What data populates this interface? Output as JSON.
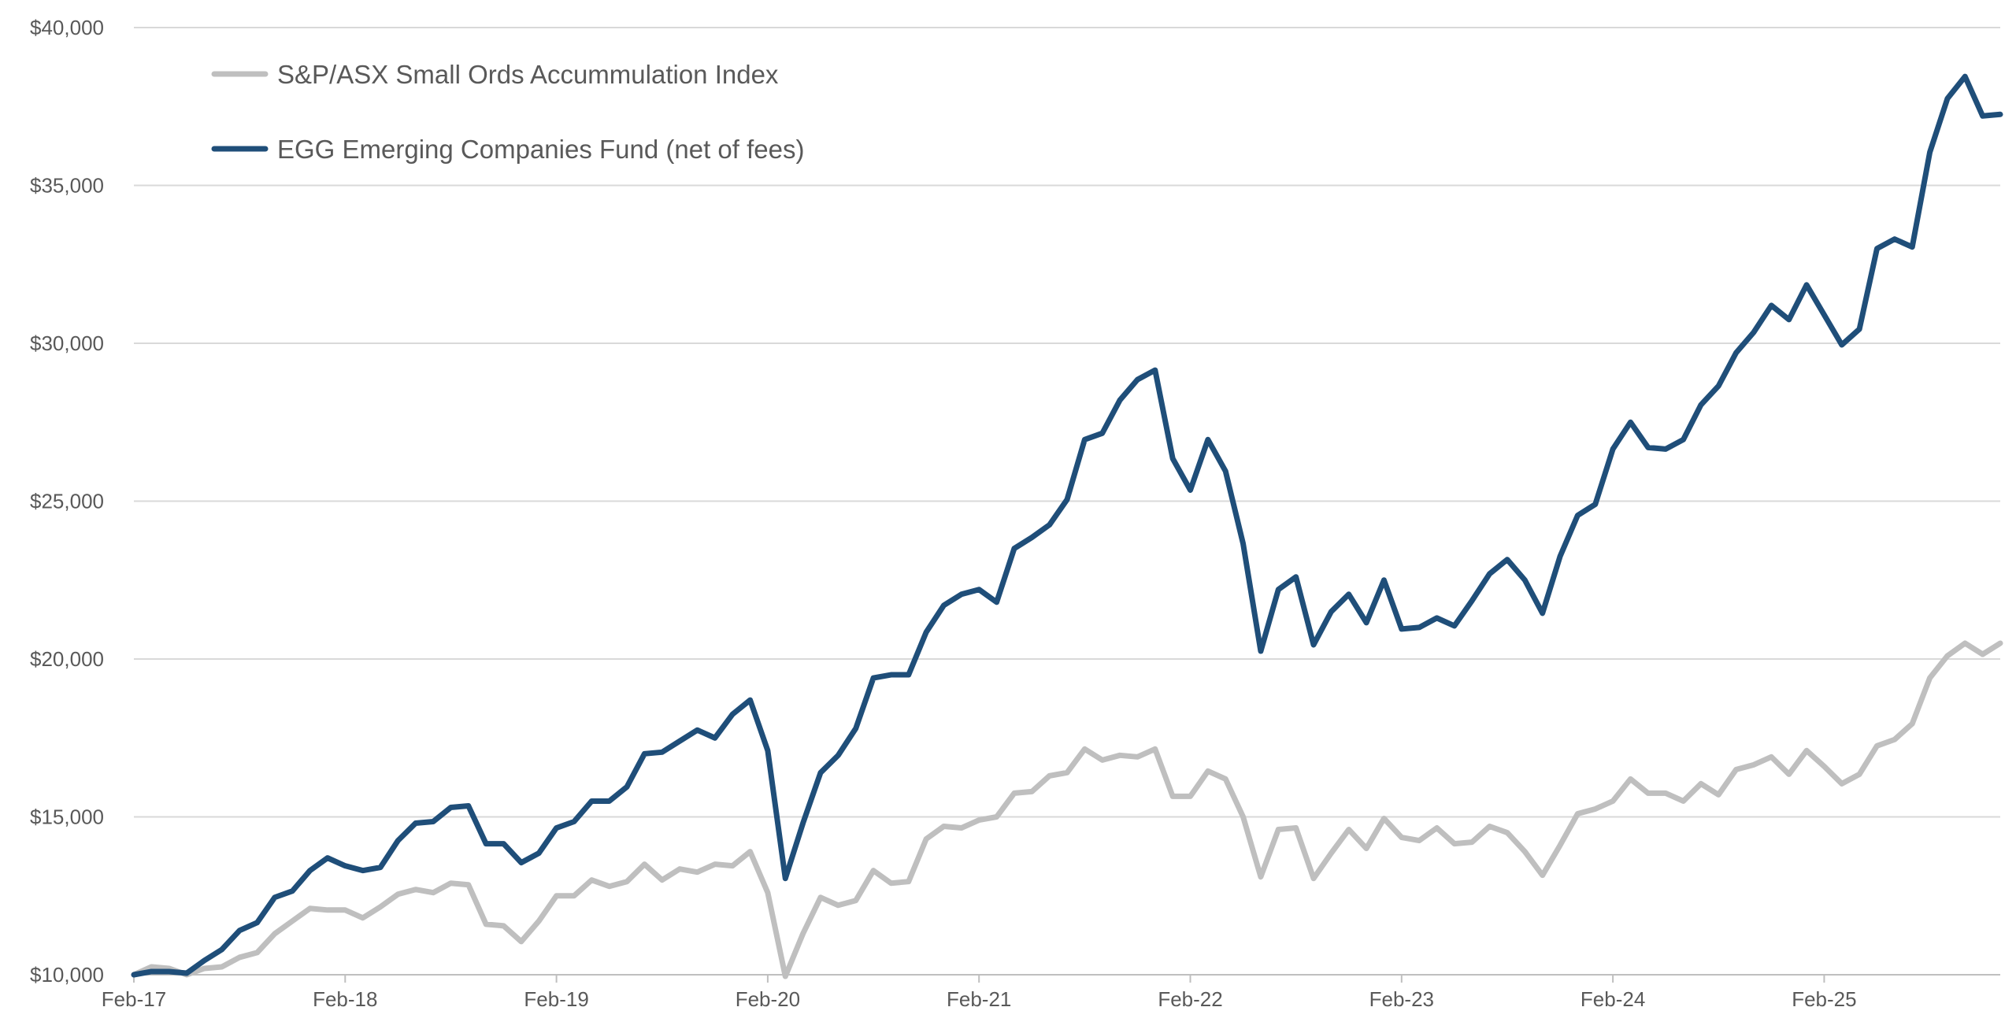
{
  "chart_data": {
    "type": "line",
    "title": "",
    "xlabel": "",
    "ylabel": "",
    "ylim": [
      10000,
      40000
    ],
    "y_ticks": [
      10000,
      15000,
      20000,
      25000,
      30000,
      35000,
      40000
    ],
    "y_tick_labels": [
      "$10,000",
      "$15,000",
      "$20,000",
      "$25,000",
      "$30,000",
      "$35,000",
      "$40,000"
    ],
    "x_tick_labels": [
      "Feb-17",
      "Feb-18",
      "Feb-19",
      "Feb-20",
      "Feb-21",
      "Feb-22",
      "Feb-23",
      "Feb-24",
      "Feb-25"
    ],
    "x_tick_index": [
      0,
      12,
      24,
      36,
      48,
      60,
      72,
      84,
      96
    ],
    "grid": "horizontal",
    "legend_position": "top-left",
    "series": [
      {
        "name": "S&P/ASX Small Ords Accummulation Index",
        "color": "#bfbfbf",
        "values": [
          10000,
          10250,
          10200,
          10000,
          10200,
          10250,
          10550,
          10700,
          11300,
          11700,
          12100,
          12050,
          12050,
          11800,
          12150,
          12550,
          12700,
          12600,
          12900,
          12850,
          11600,
          11550,
          11050,
          11700,
          12500,
          12500,
          13000,
          12800,
          12950,
          13500,
          13000,
          13350,
          13250,
          13500,
          13450,
          13900,
          12600,
          9950,
          11300,
          12450,
          12200,
          12350,
          13300,
          12900,
          12950,
          14300,
          14700,
          14650,
          14900,
          15000,
          15750,
          15800,
          16300,
          16400,
          17150,
          16800,
          16950,
          16900,
          17150,
          15650,
          15650,
          16450,
          16200,
          15000,
          13100,
          14600,
          14650,
          13050,
          13850,
          14600,
          14000,
          14950,
          14350,
          14250,
          14650,
          14150,
          14200,
          14700,
          14500,
          13900,
          13150,
          14100,
          15100,
          15250,
          15500,
          16200,
          15750,
          15750,
          15500,
          16050,
          15700,
          16500,
          16650,
          16900,
          16350,
          17100,
          16600,
          16050,
          16350,
          17250,
          17450,
          17950,
          19400,
          20100,
          20500,
          20150,
          20500
        ]
      },
      {
        "name": "EGG Emerging Companies Fund (net of fees)",
        "color": "#1f4e79",
        "values": [
          10000,
          10100,
          10100,
          10050,
          10450,
          10800,
          11400,
          11650,
          12450,
          12650,
          13300,
          13700,
          13450,
          13300,
          13400,
          14250,
          14800,
          14850,
          15300,
          15350,
          14150,
          14150,
          13550,
          13850,
          14650,
          14850,
          15500,
          15500,
          15950,
          17000,
          17050,
          17400,
          17750,
          17500,
          18250,
          18700,
          17100,
          13050,
          14800,
          16400,
          16950,
          17800,
          19400,
          19500,
          19500,
          20850,
          21700,
          22050,
          22200,
          21800,
          23500,
          23850,
          24250,
          25050,
          26950,
          27150,
          28200,
          28850,
          29150,
          26350,
          25350,
          26950,
          25950,
          23650,
          20250,
          22200,
          22600,
          20450,
          21500,
          22050,
          21150,
          22500,
          20950,
          21000,
          21300,
          21050,
          21850,
          22700,
          23150,
          22500,
          21450,
          23250,
          24550,
          24900,
          26650,
          27500,
          26700,
          26650,
          26950,
          28050,
          28650,
          29700,
          30350,
          31200,
          30750,
          31850,
          30900,
          29950,
          30450,
          33000,
          33300,
          33050,
          36050,
          37750,
          38450,
          37200,
          37250
        ]
      }
    ]
  }
}
